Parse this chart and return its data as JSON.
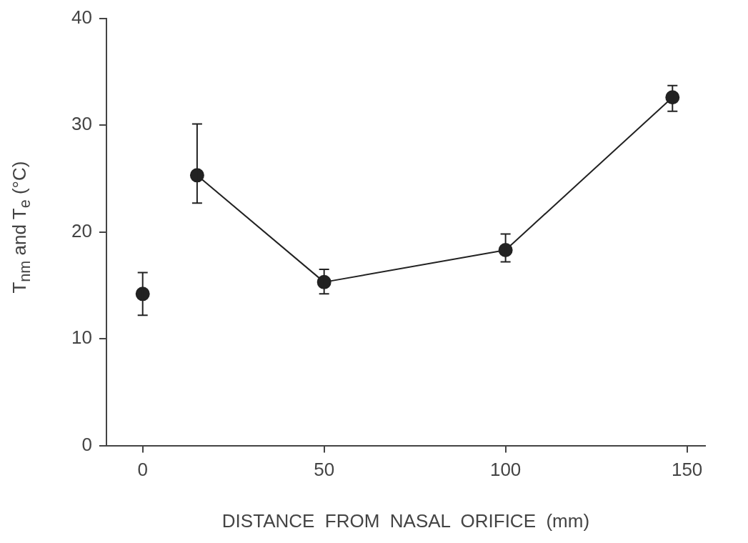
{
  "chart_data": {
    "type": "line",
    "xlabel": "DISTANCE  FROM  NASAL  ORIFICE  (mm)",
    "ylabel": "T$_{nm}$ and T$_{e}$ (°C)",
    "xlim": [
      -10,
      155
    ],
    "xticks": [
      0,
      50,
      100,
      150
    ],
    "ylim": [
      0,
      40
    ],
    "yticks": [
      0,
      10,
      20,
      30,
      40
    ],
    "marker": "circle",
    "series": [
      {
        "type": "scatter",
        "color": "#222222",
        "x": [
          0
        ],
        "values": [
          14.2
        ],
        "errors": [
          [
            12.2,
            16.2
          ]
        ]
      },
      {
        "type": "line",
        "color": "#222222",
        "x": [
          15,
          50,
          100,
          146
        ],
        "values": [
          25.3,
          15.3,
          18.3,
          32.6
        ],
        "errors": [
          [
            22.7,
            30.1
          ],
          [
            14.2,
            16.5
          ],
          [
            17.2,
            19.8
          ],
          [
            31.3,
            33.7
          ]
        ]
      }
    ]
  }
}
